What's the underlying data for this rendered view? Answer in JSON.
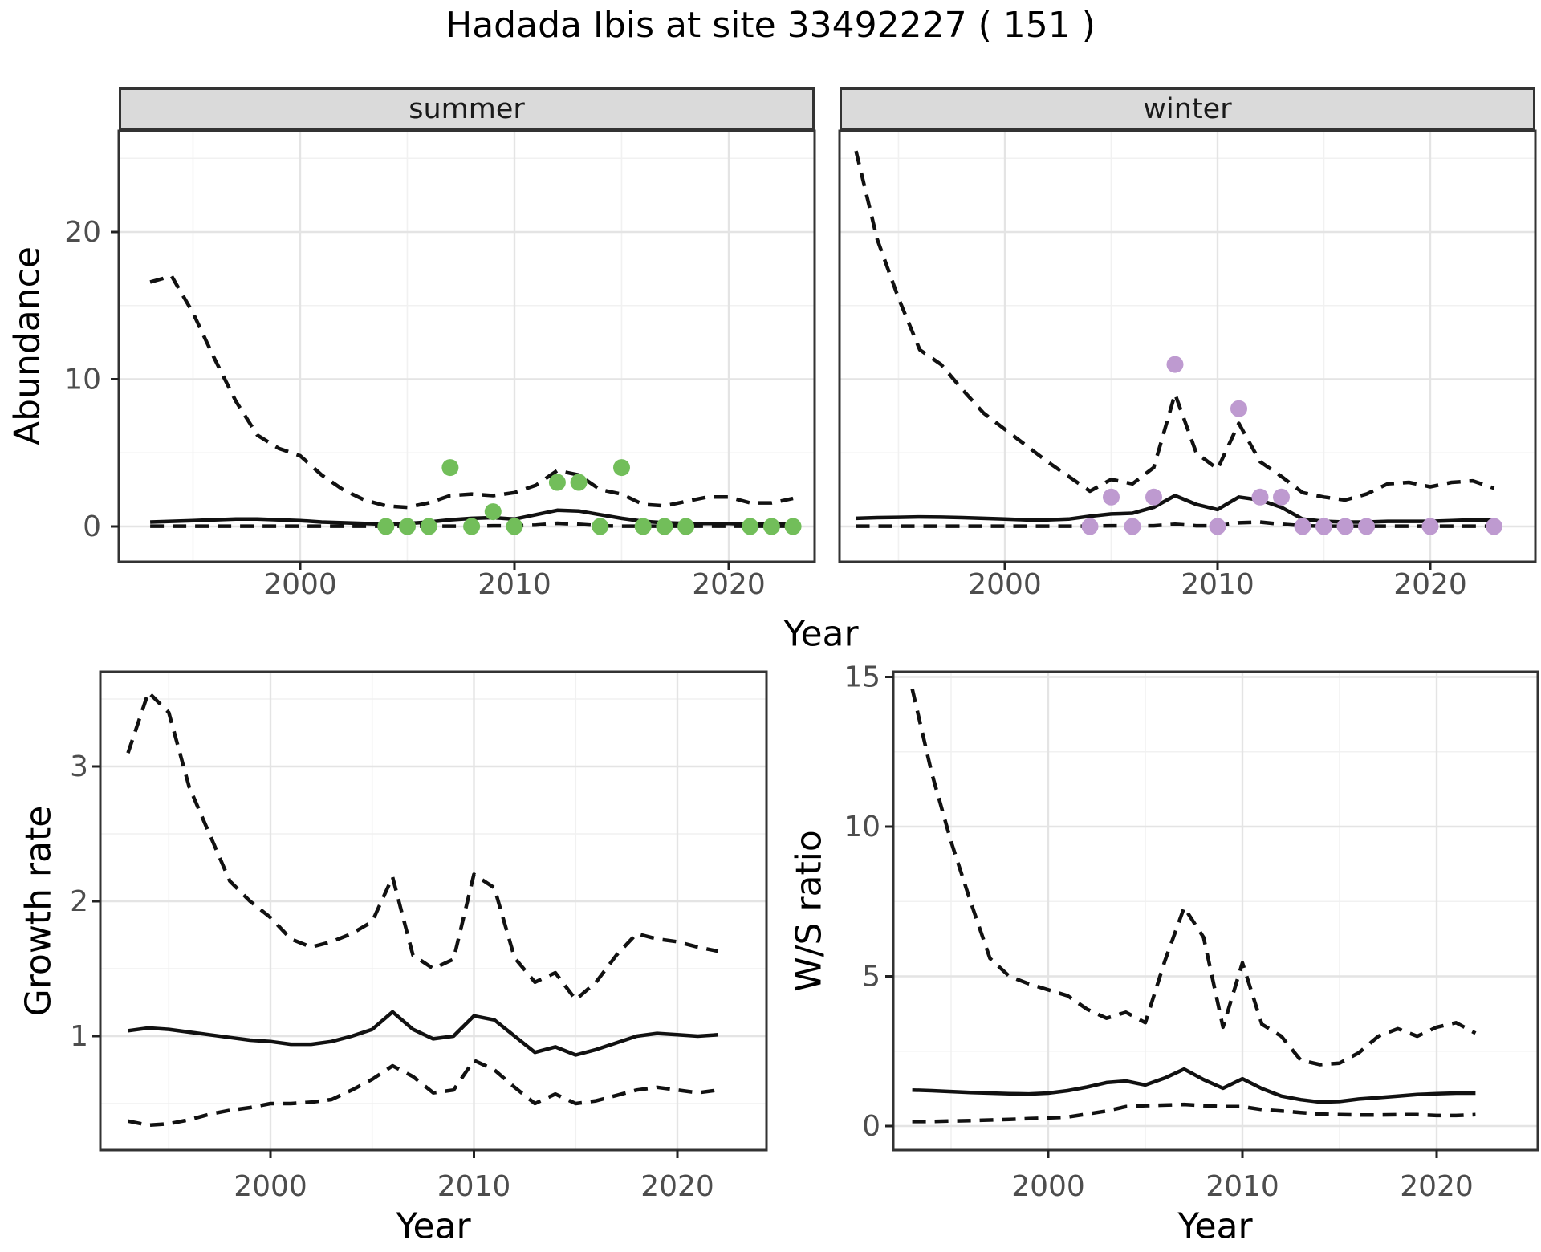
{
  "title": "Hadada Ibis at site 33492227 ( 151 )",
  "facets": [
    {
      "label": "summer"
    },
    {
      "label": "winter"
    }
  ],
  "labels": {
    "abundance": "Abundance",
    "year": "Year",
    "growth_rate": "Growth rate",
    "ws_ratio": "W/S ratio"
  },
  "colors": {
    "summer_point": "#72BE5A",
    "winter_point": "#BE9AD0",
    "line": "#111111",
    "panel_border": "#333333",
    "grid_major": "#E4E4E4",
    "grid_minor": "#F1F1F1",
    "strip_bg": "#DADADA",
    "tick_text": "#4D4D4D"
  },
  "chart_data": [
    {
      "id": "abundance-summer",
      "type": "line",
      "facet": "summer",
      "xlabel": "Year",
      "ylabel": "Abundance",
      "xlim": [
        1991.5,
        2024
      ],
      "ylim": [
        -2.4,
        26.9
      ],
      "xticks": [
        2000,
        2010,
        2020
      ],
      "yticks": [
        0,
        10,
        20
      ],
      "legend": "none",
      "years": [
        1993,
        1994,
        1995,
        1996,
        1997,
        1998,
        1999,
        2000,
        2001,
        2002,
        2003,
        2004,
        2005,
        2006,
        2007,
        2008,
        2009,
        2010,
        2011,
        2012,
        2013,
        2014,
        2015,
        2016,
        2017,
        2018,
        2019,
        2020,
        2021,
        2022,
        2023
      ],
      "series": [
        {
          "name": "upper-95ci",
          "style": "dashed",
          "values": [
            16.6,
            17.0,
            14.5,
            11.4,
            8.5,
            6.2,
            5.3,
            4.8,
            3.5,
            2.5,
            1.8,
            1.4,
            1.3,
            1.6,
            2.1,
            2.2,
            2.1,
            2.3,
            2.8,
            3.8,
            3.5,
            2.5,
            2.2,
            1.5,
            1.4,
            1.7,
            2.0,
            2.0,
            1.6,
            1.6,
            1.9
          ]
        },
        {
          "name": "median",
          "style": "solid",
          "values": [
            0.3,
            0.35,
            0.4,
            0.45,
            0.5,
            0.5,
            0.45,
            0.4,
            0.3,
            0.25,
            0.2,
            0.15,
            0.2,
            0.3,
            0.45,
            0.55,
            0.6,
            0.5,
            0.8,
            1.1,
            1.05,
            0.8,
            0.55,
            0.35,
            0.25,
            0.2,
            0.2,
            0.2,
            0.15,
            0.15,
            0.15
          ]
        },
        {
          "name": "lower-95ci",
          "style": "dashed",
          "values": [
            0.02,
            0.02,
            0.02,
            0.02,
            0.02,
            0.02,
            0.02,
            0.02,
            0.02,
            0.02,
            0.02,
            0.02,
            0.02,
            0.02,
            0.02,
            0.02,
            0.05,
            0.05,
            0.1,
            0.22,
            0.15,
            0.05,
            0.02,
            0.02,
            0.02,
            0.02,
            0.02,
            0.02,
            0.02,
            0.02,
            0.02
          ]
        }
      ],
      "observations": {
        "color": "#72BE5A",
        "points": [
          [
            2004,
            0
          ],
          [
            2005,
            0
          ],
          [
            2006,
            0
          ],
          [
            2007,
            4
          ],
          [
            2008,
            0
          ],
          [
            2009,
            1
          ],
          [
            2010,
            0
          ],
          [
            2012,
            3
          ],
          [
            2013,
            3
          ],
          [
            2014,
            0
          ],
          [
            2015,
            4
          ],
          [
            2016,
            0
          ],
          [
            2017,
            0
          ],
          [
            2018,
            0
          ],
          [
            2021,
            0
          ],
          [
            2022,
            0
          ],
          [
            2023,
            0
          ]
        ]
      }
    },
    {
      "id": "abundance-winter",
      "type": "line",
      "facet": "winter",
      "xlabel": "Year",
      "ylabel": "Abundance",
      "xlim": [
        1992.2,
        2024.9
      ],
      "ylim": [
        -2.4,
        26.9
      ],
      "xticks": [
        2000,
        2010,
        2020
      ],
      "yticks": [
        0,
        10,
        20
      ],
      "legend": "none",
      "years": [
        1993,
        1994,
        1995,
        1996,
        1997,
        1998,
        1999,
        2000,
        2001,
        2002,
        2003,
        2004,
        2005,
        2006,
        2007,
        2008,
        2009,
        2010,
        2011,
        2012,
        2013,
        2014,
        2015,
        2016,
        2017,
        2018,
        2019,
        2020,
        2021,
        2022,
        2023
      ],
      "series": [
        {
          "name": "upper-95ci",
          "style": "dashed",
          "values": [
            25.5,
            19.5,
            15.5,
            12.0,
            11.0,
            9.3,
            7.7,
            6.6,
            5.5,
            4.4,
            3.4,
            2.4,
            3.2,
            2.9,
            4.0,
            9.0,
            5.0,
            3.9,
            7.0,
            4.4,
            3.4,
            2.3,
            2.0,
            1.8,
            2.2,
            2.9,
            3.0,
            2.7,
            3.0,
            3.1,
            2.6
          ]
        },
        {
          "name": "median",
          "style": "solid",
          "values": [
            0.55,
            0.6,
            0.62,
            0.65,
            0.63,
            0.6,
            0.55,
            0.5,
            0.45,
            0.45,
            0.5,
            0.7,
            0.85,
            0.9,
            1.3,
            2.1,
            1.5,
            1.15,
            2.0,
            1.8,
            1.3,
            0.5,
            0.35,
            0.3,
            0.3,
            0.35,
            0.35,
            0.35,
            0.4,
            0.45,
            0.45
          ]
        },
        {
          "name": "lower-95ci",
          "style": "dashed",
          "values": [
            0.02,
            0.02,
            0.02,
            0.02,
            0.02,
            0.02,
            0.02,
            0.02,
            0.02,
            0.02,
            0.02,
            0.02,
            0.05,
            0.05,
            0.05,
            0.15,
            0.05,
            0.05,
            0.25,
            0.3,
            0.15,
            0.05,
            0.02,
            0.02,
            0.02,
            0.02,
            0.02,
            0.02,
            0.02,
            0.02,
            0.02
          ]
        }
      ],
      "observations": {
        "color": "#BE9AD0",
        "points": [
          [
            2004,
            0
          ],
          [
            2005,
            2
          ],
          [
            2006,
            0
          ],
          [
            2007,
            2
          ],
          [
            2008,
            11
          ],
          [
            2010,
            0
          ],
          [
            2011,
            8
          ],
          [
            2012,
            2
          ],
          [
            2013,
            2
          ],
          [
            2014,
            0
          ],
          [
            2015,
            0
          ],
          [
            2016,
            0
          ],
          [
            2017,
            0
          ],
          [
            2020,
            0
          ],
          [
            2023,
            0
          ]
        ]
      }
    },
    {
      "id": "growth-rate",
      "type": "line",
      "xlabel": "Year",
      "ylabel": "Growth rate",
      "xlim": [
        1991.6,
        2024.4
      ],
      "ylim": [
        0.15,
        3.7
      ],
      "xticks": [
        2000,
        2010,
        2020
      ],
      "yticks": [
        1,
        2,
        3
      ],
      "legend": "none",
      "years": [
        1993,
        1994,
        1995,
        1996,
        1997,
        1998,
        1999,
        2000,
        2001,
        2002,
        2003,
        2004,
        2005,
        2006,
        2007,
        2008,
        2009,
        2010,
        2011,
        2012,
        2013,
        2014,
        2015,
        2016,
        2017,
        2018,
        2019,
        2020,
        2021,
        2022
      ],
      "series": [
        {
          "name": "upper-95ci",
          "style": "dashed",
          "values": [
            3.1,
            3.55,
            3.4,
            2.85,
            2.5,
            2.15,
            2.0,
            1.88,
            1.72,
            1.66,
            1.7,
            1.76,
            1.85,
            2.18,
            1.6,
            1.5,
            1.57,
            2.2,
            2.1,
            1.58,
            1.4,
            1.47,
            1.27,
            1.4,
            1.6,
            1.76,
            1.72,
            1.7,
            1.66,
            1.63
          ]
        },
        {
          "name": "median",
          "style": "solid",
          "values": [
            1.04,
            1.06,
            1.05,
            1.03,
            1.01,
            0.99,
            0.97,
            0.96,
            0.94,
            0.94,
            0.96,
            1.0,
            1.05,
            1.18,
            1.05,
            0.98,
            1.0,
            1.15,
            1.12,
            1.0,
            0.88,
            0.92,
            0.86,
            0.9,
            0.95,
            1.0,
            1.02,
            1.01,
            1.0,
            1.01
          ]
        },
        {
          "name": "lower-95ci",
          "style": "dashed",
          "values": [
            0.37,
            0.34,
            0.35,
            0.38,
            0.42,
            0.45,
            0.47,
            0.5,
            0.5,
            0.51,
            0.53,
            0.6,
            0.68,
            0.78,
            0.7,
            0.58,
            0.6,
            0.82,
            0.75,
            0.62,
            0.5,
            0.57,
            0.5,
            0.52,
            0.56,
            0.6,
            0.62,
            0.6,
            0.58,
            0.6
          ]
        }
      ],
      "observations": {
        "color": "",
        "points": []
      }
    },
    {
      "id": "ws-ratio",
      "type": "line",
      "xlabel": "Year",
      "ylabel": "W/S ratio",
      "xlim": [
        1992.1,
        2025.2
      ],
      "ylim": [
        -0.8,
        15.2
      ],
      "xticks": [
        2000,
        2010,
        2020
      ],
      "yticks": [
        0,
        5,
        10,
        15
      ],
      "legend": "none",
      "years": [
        1993,
        1994,
        1995,
        1996,
        1997,
        1998,
        1999,
        2000,
        2001,
        2002,
        2003,
        2004,
        2005,
        2006,
        2007,
        2008,
        2009,
        2010,
        2011,
        2012,
        2013,
        2014,
        2015,
        2016,
        2017,
        2018,
        2019,
        2020,
        2021,
        2022
      ],
      "series": [
        {
          "name": "upper-95ci",
          "style": "dashed",
          "values": [
            14.6,
            11.8,
            9.5,
            7.5,
            5.6,
            5.0,
            4.75,
            4.55,
            4.35,
            3.9,
            3.6,
            3.8,
            3.45,
            5.5,
            7.3,
            6.3,
            3.3,
            5.45,
            3.4,
            3.0,
            2.2,
            2.05,
            2.1,
            2.45,
            3.0,
            3.25,
            3.0,
            3.3,
            3.45,
            3.1
          ]
        },
        {
          "name": "median",
          "style": "solid",
          "values": [
            1.2,
            1.18,
            1.15,
            1.12,
            1.1,
            1.08,
            1.07,
            1.1,
            1.18,
            1.3,
            1.45,
            1.5,
            1.37,
            1.6,
            1.9,
            1.55,
            1.26,
            1.58,
            1.25,
            1.0,
            0.88,
            0.8,
            0.82,
            0.9,
            0.95,
            1.0,
            1.05,
            1.08,
            1.1,
            1.1
          ]
        },
        {
          "name": "lower-95ci",
          "style": "dashed",
          "values": [
            0.15,
            0.15,
            0.17,
            0.18,
            0.2,
            0.22,
            0.25,
            0.27,
            0.3,
            0.4,
            0.5,
            0.65,
            0.68,
            0.7,
            0.72,
            0.68,
            0.65,
            0.65,
            0.55,
            0.5,
            0.45,
            0.4,
            0.38,
            0.37,
            0.37,
            0.38,
            0.38,
            0.35,
            0.35,
            0.38
          ]
        }
      ],
      "observations": {
        "color": "",
        "points": []
      }
    }
  ]
}
